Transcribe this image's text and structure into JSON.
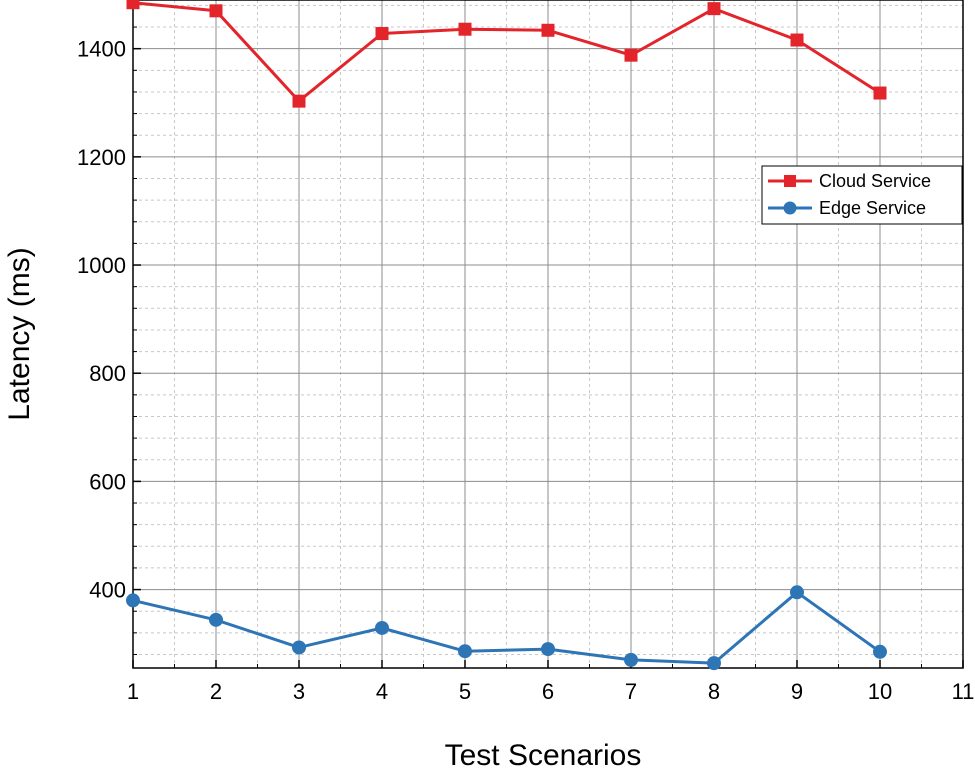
{
  "chart_data": {
    "type": "line",
    "title": "",
    "xlabel": "Test Scenarios",
    "ylabel": "Latency (ms)",
    "xlim": [
      1,
      11
    ],
    "ylim": [
      255,
      1490
    ],
    "xticks": [
      1,
      2,
      3,
      4,
      5,
      6,
      7,
      8,
      9,
      10,
      11
    ],
    "xtick_labels": [
      "1",
      "2",
      "3",
      "4",
      "5",
      "6",
      "7",
      "8",
      "9",
      "10",
      "11"
    ],
    "yticks": [
      400,
      600,
      800,
      1000,
      1200,
      1400
    ],
    "ytick_labels": [
      "400",
      "600",
      "800",
      "1000",
      "1200",
      "1400"
    ],
    "grid": true,
    "legend_position": "right",
    "x": [
      1,
      2,
      3,
      4,
      5,
      6,
      7,
      8,
      9,
      10
    ],
    "series": [
      {
        "name": "Cloud Service",
        "color": "#e3242b",
        "marker": "square",
        "values": [
          1485,
          1470,
          1303,
          1428,
          1436,
          1434,
          1388,
          1474,
          1416,
          1318
        ]
      },
      {
        "name": "Edge Service",
        "color": "#2e75b6",
        "marker": "circle",
        "values": [
          380,
          344,
          293,
          329,
          286,
          290,
          270,
          264,
          395,
          285
        ]
      }
    ]
  }
}
